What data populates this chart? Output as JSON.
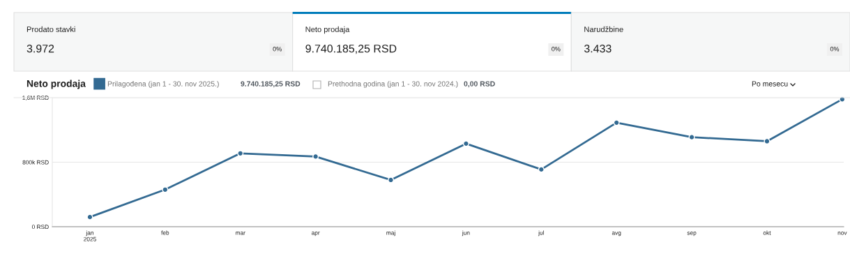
{
  "chart_data": [
    {
      "type": "other",
      "annotations": [
        "Prodato stavki",
        "3.972",
        "0%",
        "Neto prodaja",
        "9.740.185,25 RSD",
        "0%",
        "Narudžbine",
        "3.433",
        "0%"
      ]
    },
    {
      "type": "line",
      "title": "Neto prodaja",
      "categories": [
        "jan\n2025",
        "feb",
        "mar",
        "apr",
        "maj",
        "jun",
        "jul",
        "avg",
        "sep",
        "okt",
        "nov"
      ],
      "series": [
        {
          "name": "Prilagođena (jan 1 - 30. nov 2025.)",
          "color": "#336a92",
          "values": [
            120000,
            460000,
            910000,
            870000,
            580000,
            1030000,
            710000,
            1290000,
            1110000,
            1060000,
            1580000
          ]
        }
      ],
      "ylim": [
        0,
        1600000
      ],
      "yticks": [
        {
          "value": 0,
          "label": "0 RSD"
        },
        {
          "value": 800000,
          "label": "800k RSD"
        },
        {
          "value": 1600000,
          "label": "1,6M RSD"
        }
      ],
      "grid": "y",
      "legend": "top left",
      "marker": "circle",
      "line_style": "solid",
      "annotations": [
        "9.740.185,25 RSD",
        "Prethodna godina (jan 1 - 30. nov 2024.)",
        "0,00 RSD",
        "Po mesecu"
      ]
    }
  ]
}
